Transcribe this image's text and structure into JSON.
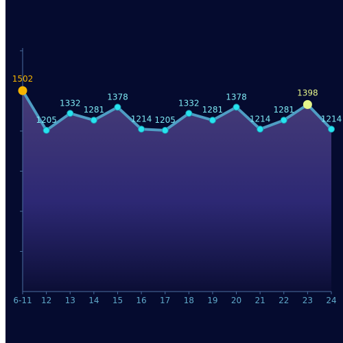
{
  "chart_data": {
    "type": "area",
    "categories": [
      "6-11",
      "12",
      "13",
      "14",
      "15",
      "16",
      "17",
      "18",
      "19",
      "20",
      "21",
      "22",
      "23",
      "24"
    ],
    "series": [
      {
        "values": [
          1502,
          1205,
          1332,
          1281,
          1378,
          1214,
          1205,
          1332,
          1281,
          1378,
          1214,
          1281,
          1398,
          1214
        ]
      }
    ],
    "title": "",
    "xlabel": "",
    "ylabel": "",
    "ylim": [
      0,
      1800
    ],
    "yticks": [
      0,
      300,
      600,
      900,
      1200,
      1500,
      1800
    ],
    "grid": false,
    "legend": "none",
    "highlights": [
      {
        "index": 0,
        "color": "#f5b400"
      },
      {
        "index": 12,
        "color": "#e6f58a"
      }
    ]
  },
  "colors": {
    "background": "#050b2f",
    "line": "#4f9dc4",
    "marker": "#27e3ee",
    "marker_stroke": "#1b9fb5",
    "label": "#7ee8f2",
    "axis": "#4a6fa0",
    "axis_label": "#5fa8c9",
    "area_top": "#4a3f7a",
    "area_mid": "#2f2a78",
    "area_bottom": "#0b0e35"
  }
}
